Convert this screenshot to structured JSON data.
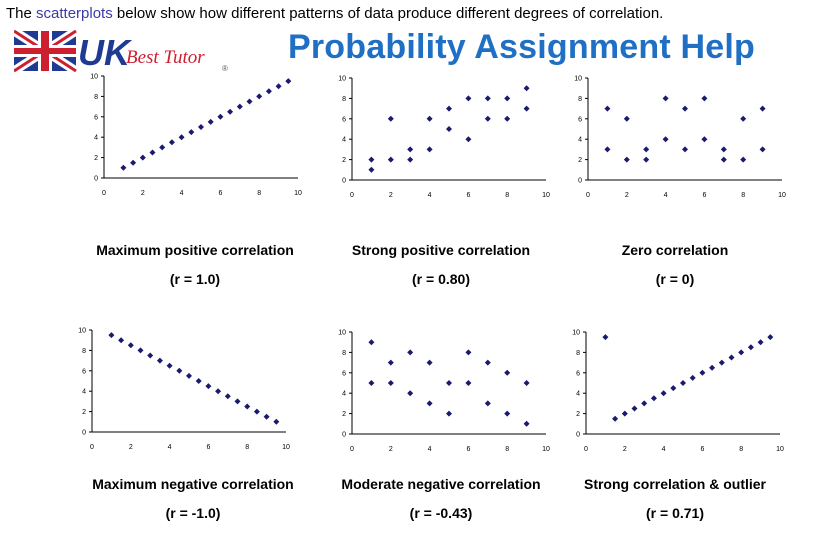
{
  "header": {
    "intro_prefix": "The ",
    "intro_link": "scatterplots",
    "intro_suffix": " below show how different patterns of data produce different degrees of correlation.",
    "banner": "Probability Assignment Help",
    "logo_text_main": "UK",
    "logo_text_script": "Best Tutor",
    "logo_sub": "®"
  },
  "colors": {
    "marker": "#1a1a6e",
    "banner": "#1f6fc4",
    "link": "#3a3aa8"
  },
  "chart_data": [
    {
      "type": "scatter",
      "caption": "Maximum positive correlation",
      "r_label": "(r = 1.0)",
      "xlim": [
        0,
        10
      ],
      "ylim": [
        0,
        10
      ],
      "xticks": [
        0,
        2,
        4,
        6,
        8,
        10
      ],
      "yticks": [
        0,
        2,
        4,
        6,
        8,
        10
      ],
      "x": [
        1,
        1.5,
        2,
        2.5,
        3,
        3.5,
        4,
        4.5,
        5,
        5.5,
        6,
        6.5,
        7,
        7.5,
        8,
        8.5,
        9,
        9.5
      ],
      "y": [
        1,
        1.5,
        2,
        2.5,
        3,
        3.5,
        4,
        4.5,
        5,
        5.5,
        6,
        6.5,
        7,
        7.5,
        8,
        8.5,
        9,
        9.5
      ]
    },
    {
      "type": "scatter",
      "caption": "Strong positive correlation",
      "r_label": "(r = 0.80)",
      "xlim": [
        0,
        10
      ],
      "ylim": [
        0,
        10
      ],
      "xticks": [
        0,
        2,
        4,
        6,
        8,
        10
      ],
      "yticks": [
        0,
        2,
        4,
        6,
        8,
        10
      ],
      "x": [
        1,
        1,
        2,
        2,
        3,
        3,
        4,
        4,
        5,
        5,
        6,
        6,
        7,
        7,
        8,
        8,
        9,
        9
      ],
      "y": [
        1,
        2,
        2,
        6,
        2,
        3,
        3,
        6,
        5,
        7,
        4,
        8,
        6,
        8,
        6,
        8,
        7,
        9
      ]
    },
    {
      "type": "scatter",
      "caption": "Zero correlation",
      "r_label": "(r = 0)",
      "xlim": [
        0,
        10
      ],
      "ylim": [
        0,
        10
      ],
      "xticks": [
        0,
        2,
        4,
        6,
        8,
        10
      ],
      "yticks": [
        0,
        2,
        4,
        6,
        8,
        10
      ],
      "x": [
        1,
        1,
        2,
        2,
        3,
        3,
        4,
        4,
        5,
        5,
        6,
        6,
        7,
        7,
        8,
        8,
        9,
        9
      ],
      "y": [
        3,
        7,
        2,
        6,
        2,
        3,
        4,
        8,
        3,
        7,
        4,
        8,
        2,
        3,
        2,
        6,
        3,
        7
      ]
    },
    {
      "type": "scatter",
      "caption": "Maximum negative correlation",
      "r_label": "(r = -1.0)",
      "xlim": [
        0,
        10
      ],
      "ylim": [
        0,
        10
      ],
      "xticks": [
        0,
        2,
        4,
        6,
        8,
        10
      ],
      "yticks": [
        0,
        2,
        4,
        6,
        8,
        10
      ],
      "x": [
        1,
        1.5,
        2,
        2.5,
        3,
        3.5,
        4,
        4.5,
        5,
        5.5,
        6,
        6.5,
        7,
        7.5,
        8,
        8.5,
        9,
        9.5
      ],
      "y": [
        9.5,
        9,
        8.5,
        8,
        7.5,
        7,
        6.5,
        6,
        5.5,
        5,
        4.5,
        4,
        3.5,
        3,
        2.5,
        2,
        1.5,
        1
      ]
    },
    {
      "type": "scatter",
      "caption": "Moderate negative correlation",
      "r_label": "(r = -0.43)",
      "xlim": [
        0,
        10
      ],
      "ylim": [
        0,
        10
      ],
      "xticks": [
        0,
        2,
        4,
        6,
        8,
        10
      ],
      "yticks": [
        0,
        2,
        4,
        6,
        8,
        10
      ],
      "x": [
        1,
        1,
        2,
        2,
        3,
        3,
        4,
        4,
        5,
        5,
        6,
        6,
        7,
        7,
        8,
        8,
        9,
        9
      ],
      "y": [
        9,
        5,
        7,
        5,
        8,
        4,
        7,
        3,
        5,
        2,
        8,
        5,
        7,
        3,
        6,
        2,
        5,
        1
      ]
    },
    {
      "type": "scatter",
      "caption": "Strong correlation & outlier",
      "r_label": "(r = 0.71)",
      "xlim": [
        0,
        10
      ],
      "ylim": [
        0,
        10
      ],
      "xticks": [
        0,
        2,
        4,
        6,
        8,
        10
      ],
      "yticks": [
        0,
        2,
        4,
        6,
        8,
        10
      ],
      "x": [
        1,
        1.5,
        2,
        2.5,
        3,
        3.5,
        4,
        4.5,
        5,
        5.5,
        6,
        6.5,
        7,
        7.5,
        8,
        8.5,
        9,
        9.5
      ],
      "y": [
        9.5,
        1.5,
        2,
        2.5,
        3,
        3.5,
        4,
        4.5,
        5,
        5.5,
        6,
        6.5,
        7,
        7.5,
        8,
        8.5,
        9,
        9.5
      ]
    }
  ]
}
